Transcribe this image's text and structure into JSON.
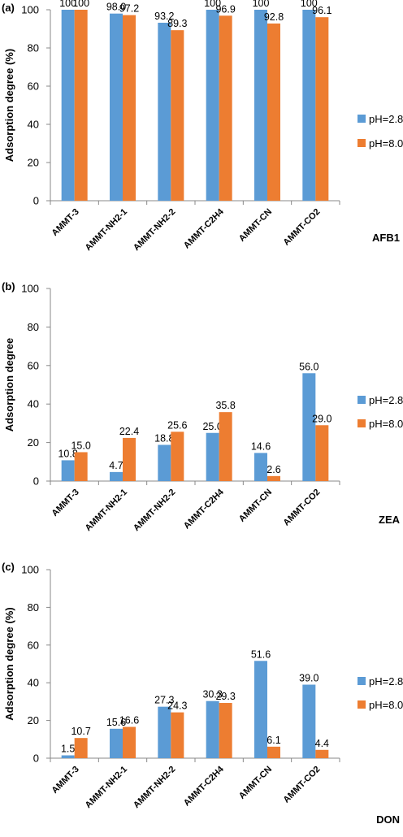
{
  "colors": {
    "ph28": "#5b9bd5",
    "ph80": "#ed7d31"
  },
  "chart_data": [
    {
      "type": "bar",
      "panel_label": "(a)",
      "toxin": "AFB1",
      "ylabel": "Adsorption degree (%)",
      "ylim": [
        0,
        100
      ],
      "yticks": [
        "0",
        "20",
        "40",
        "60",
        "80",
        "100"
      ],
      "categories": [
        "AMMT-3",
        "AMMT-NH2-1",
        "AMMT-NH2-2",
        "AMMT-C2H4",
        "AMMT-CN",
        "AMMT-CO2"
      ],
      "series": [
        {
          "name": "pH=2.8",
          "values": [
            100,
            98.0,
            93.2,
            100,
            100,
            100
          ],
          "labels": [
            "100",
            "98.0",
            "93.2",
            "100",
            "100",
            "100"
          ]
        },
        {
          "name": "pH=8.0",
          "values": [
            100,
            97.2,
            89.3,
            96.9,
            92.8,
            96.1
          ],
          "labels": [
            "100",
            "97.2",
            "89.3",
            "96.9",
            "92.8",
            "96.1"
          ]
        }
      ]
    },
    {
      "type": "bar",
      "panel_label": "(b)",
      "toxin": "ZEA",
      "ylabel": "Adsorption degree",
      "ylim": [
        0,
        100
      ],
      "yticks": [
        "0",
        "20",
        "40",
        "60",
        "80",
        "100"
      ],
      "categories": [
        "AMMT-3",
        "AMMT-NH2-1",
        "AMMT-NH2-2",
        "AMMT-C2H4",
        "AMMT-CN",
        "AMMT-CO2"
      ],
      "series": [
        {
          "name": "pH=2.8",
          "values": [
            10.8,
            4.7,
            18.8,
            25.0,
            14.6,
            56.0
          ],
          "labels": [
            "10.8",
            "4.7",
            "18.8",
            "25.0",
            "14.6",
            "56.0"
          ]
        },
        {
          "name": "pH=8.0",
          "values": [
            15.0,
            22.4,
            25.6,
            35.8,
            2.6,
            29.0
          ],
          "labels": [
            "15.0",
            "22.4",
            "25.6",
            "35.8",
            "2.6",
            "29.0"
          ]
        }
      ]
    },
    {
      "type": "bar",
      "panel_label": "(c)",
      "toxin": "DON",
      "ylabel": "Adsorption degree (%)",
      "ylim": [
        0,
        100
      ],
      "yticks": [
        "0",
        "20",
        "40",
        "60",
        "80",
        "100"
      ],
      "categories": [
        "AMMT-3",
        "AMMT-NH2-1",
        "AMMT-NH2-2",
        "AMMT-C2H4",
        "AMMT-CN",
        "AMMT-CO2"
      ],
      "series": [
        {
          "name": "pH=2.8",
          "values": [
            1.5,
            15.6,
            27.3,
            30.3,
            51.6,
            39.0
          ],
          "labels": [
            "1.5",
            "15.6",
            "27.3",
            "30.3",
            "51.6",
            "39.0"
          ]
        },
        {
          "name": "pH=8.0",
          "values": [
            10.7,
            16.6,
            24.3,
            29.3,
            6.1,
            4.4
          ],
          "labels": [
            "10.7",
            "16.6",
            "24.3",
            "29.3",
            "6.1",
            "4.4"
          ]
        }
      ]
    }
  ]
}
